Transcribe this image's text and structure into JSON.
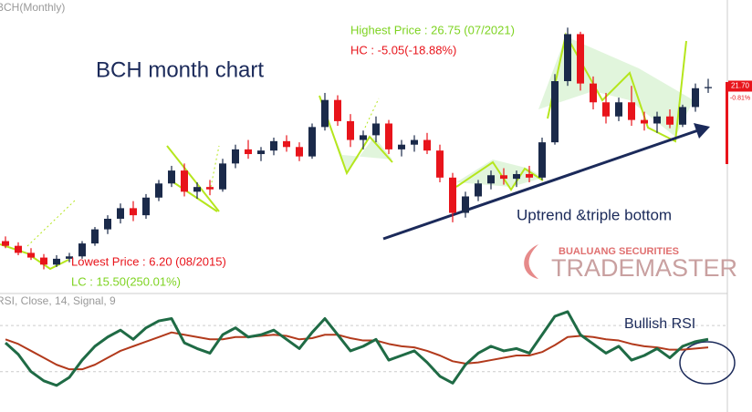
{
  "chart_data": [
    {
      "type": "candlestick",
      "title": "BCH(Monthly)",
      "ylim": [
        4.3,
        29.1
      ],
      "up_color": "#1b2a4a",
      "down_color": "#e8141b",
      "open": [
        8.6,
        8.2,
        7.6,
        7.2,
        6.6,
        7.1,
        7.3,
        8.4,
        9.6,
        10.5,
        11.4,
        10.8,
        12.3,
        13.5,
        14.6,
        12.8,
        13.2,
        13.0,
        15.2,
        16.4,
        16.0,
        16.3,
        17.1,
        16.6,
        15.8,
        18.3,
        20.6,
        18.8,
        17.2,
        17.6,
        18.6,
        16.4,
        16.8,
        17.2,
        16.3,
        14.0,
        11.0,
        12.4,
        13.5,
        14.2,
        13.9,
        14.3,
        14.0,
        17.0,
        22.2,
        26.2,
        22.0,
        20.4,
        19.2,
        20.4,
        18.9,
        18.6,
        19.2,
        18.5,
        20.0,
        21.6
      ],
      "high": [
        9.0,
        8.5,
        8.0,
        7.5,
        7.4,
        7.6,
        8.6,
        9.8,
        10.8,
        11.8,
        12.0,
        12.6,
        13.8,
        15.0,
        15.2,
        13.6,
        13.8,
        15.6,
        16.8,
        17.2,
        16.6,
        17.4,
        17.6,
        17.0,
        18.6,
        21.2,
        21.0,
        19.4,
        18.0,
        19.2,
        18.9,
        17.2,
        17.6,
        17.8,
        16.8,
        14.4,
        12.8,
        13.8,
        14.6,
        14.8,
        14.6,
        15.0,
        17.4,
        22.8,
        26.75,
        26.4,
        22.6,
        21.2,
        20.8,
        21.8,
        19.6,
        19.6,
        19.8,
        20.2,
        22.0,
        22.4
      ],
      "low": [
        8.0,
        7.4,
        7.0,
        6.2,
        6.4,
        6.8,
        7.1,
        8.2,
        9.2,
        10.1,
        10.3,
        10.5,
        12.0,
        13.2,
        12.4,
        12.2,
        12.5,
        12.8,
        14.8,
        15.6,
        15.4,
        15.9,
        16.2,
        15.4,
        15.6,
        18.0,
        18.4,
        16.6,
        16.4,
        17.0,
        16.0,
        15.8,
        16.2,
        16.0,
        13.6,
        10.2,
        10.6,
        12.0,
        13.0,
        13.4,
        13.2,
        13.6,
        13.8,
        16.8,
        21.8,
        21.4,
        19.8,
        18.6,
        18.8,
        18.4,
        18.0,
        17.8,
        18.2,
        18.3,
        19.6,
        21.2
      ],
      "close": [
        8.2,
        7.6,
        7.2,
        6.6,
        7.1,
        7.3,
        8.4,
        9.6,
        10.5,
        11.4,
        10.8,
        12.3,
        13.5,
        14.6,
        12.8,
        13.2,
        13.0,
        15.2,
        16.4,
        16.0,
        16.3,
        17.1,
        16.6,
        15.8,
        18.3,
        20.6,
        18.8,
        17.2,
        17.6,
        18.6,
        16.4,
        16.8,
        17.2,
        16.3,
        14.0,
        11.0,
        12.4,
        13.5,
        14.2,
        13.9,
        14.3,
        14.0,
        17.0,
        22.2,
        26.2,
        22.0,
        20.4,
        19.2,
        20.4,
        18.9,
        18.6,
        19.2,
        18.5,
        20.0,
        21.6,
        21.7
      ],
      "last_price": {
        "value": 21.7,
        "label": "21.70"
      },
      "change": {
        "value": -0.81,
        "label": "-0.81%"
      },
      "annotations": [
        "BCH month chart",
        "Highest Price : 26.75 (07/2021)",
        "HC : -5.05(-18.88%)",
        "Lowest Price : 6.20 (08/2015)",
        "LC : 15.50(250.01%)",
        "Uptrend &triple bottom"
      ],
      "watermark": [
        "BUALUANG SECURITIES",
        "TRADEMASTER"
      ]
    },
    {
      "type": "line",
      "title": "RSI, Close, 14, Signal, 9",
      "ylim": [
        -5,
        93
      ],
      "levels": [
        70,
        30
      ],
      "series": [
        {
          "color": "#1f6b45",
          "values": [
            55,
            45,
            30,
            22,
            18,
            25,
            40,
            52,
            60,
            66,
            58,
            68,
            74,
            76,
            55,
            50,
            46,
            62,
            68,
            60,
            62,
            66,
            58,
            50,
            64,
            76,
            62,
            48,
            52,
            58,
            40,
            44,
            48,
            38,
            26,
            20,
            36,
            46,
            52,
            48,
            50,
            46,
            62,
            78,
            82,
            62,
            54,
            46,
            52,
            40,
            44,
            50,
            42,
            52,
            56,
            58
          ]
        },
        {
          "color": "#b23a1c",
          "values": [
            58,
            54,
            48,
            42,
            36,
            32,
            32,
            36,
            42,
            48,
            52,
            56,
            60,
            64,
            62,
            60,
            58,
            58,
            60,
            60,
            61,
            62,
            61,
            58,
            59,
            62,
            62,
            59,
            57,
            57,
            54,
            52,
            51,
            48,
            44,
            39,
            37,
            38,
            40,
            42,
            44,
            44,
            47,
            53,
            60,
            61,
            60,
            58,
            57,
            54,
            52,
            51,
            49,
            49,
            50,
            51
          ]
        }
      ],
      "annotations": [
        "Bullish RSI"
      ]
    }
  ]
}
